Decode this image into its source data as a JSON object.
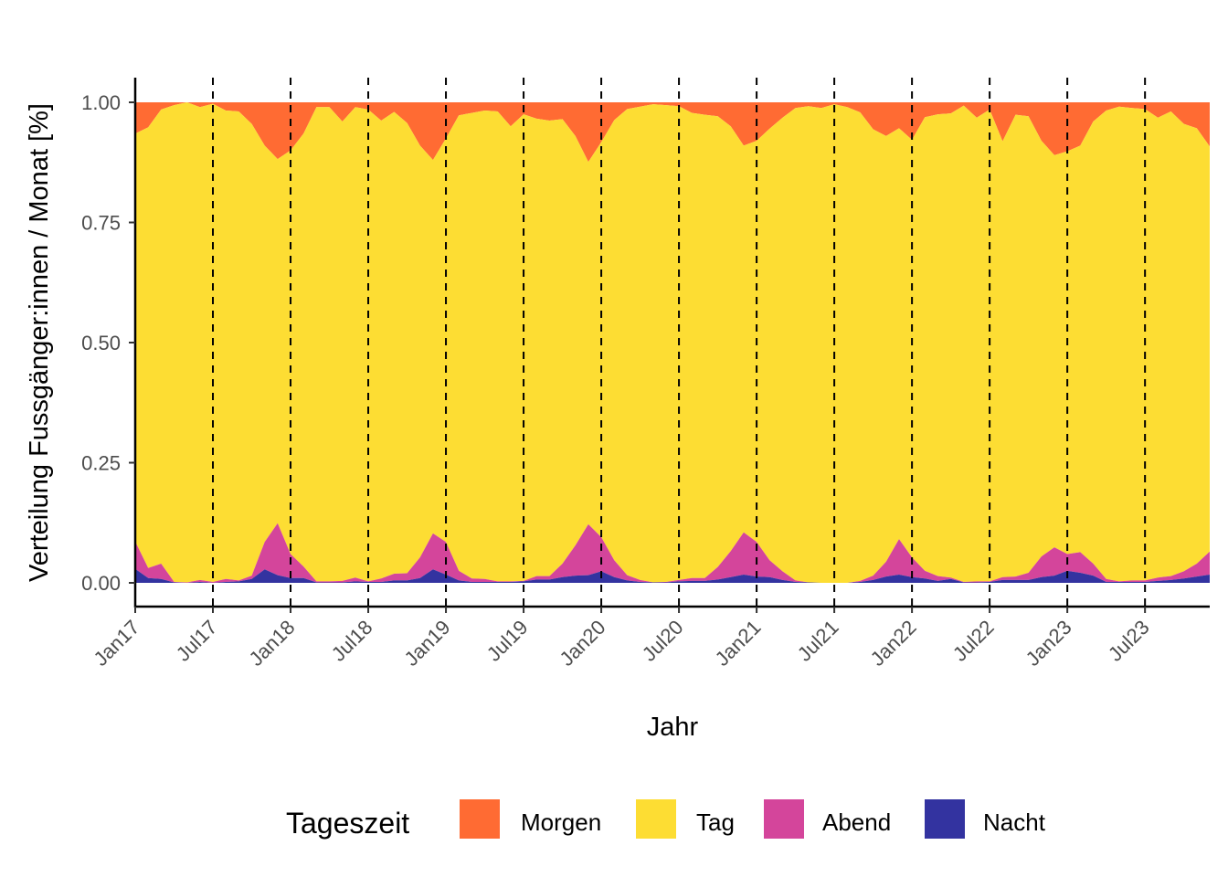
{
  "chart_data": {
    "type": "area",
    "stacked": true,
    "normalized": true,
    "title": "",
    "xlabel": "Jahr",
    "ylabel": "Verteilung Fussgänger:innen / Monat [%]",
    "ylim": [
      0,
      1
    ],
    "yticks": [
      "0.00",
      "0.25",
      "0.50",
      "0.75",
      "1.00"
    ],
    "ytick_values": [
      0,
      0.25,
      0.5,
      0.75,
      1.0
    ],
    "xticks": [
      "Jan17",
      "Jul17",
      "Jan18",
      "Jul18",
      "Jan19",
      "Jul19",
      "Jan20",
      "Jul20",
      "Jan21",
      "Jul21",
      "Jan22",
      "Jul22",
      "Jan23",
      "Jul23"
    ],
    "xtick_month_index": [
      0,
      6,
      12,
      18,
      24,
      30,
      36,
      42,
      48,
      54,
      60,
      66,
      72,
      78
    ],
    "x_start": "2017-01",
    "x_end": "2023-12",
    "n_months": 84,
    "vertical_dashed_lines_at_ticks": true,
    "grid": false,
    "legend": {
      "title": "Tageszeit",
      "position": "bottom",
      "entries": [
        "Morgen",
        "Tag",
        "Abend",
        "Nacht"
      ]
    },
    "colors": {
      "Morgen": "#FF6B33",
      "Tag": "#FDDD33",
      "Abend": "#D4459B",
      "Nacht": "#3333A0"
    },
    "stack_order_bottom_to_top": [
      "Nacht",
      "Abend",
      "Tag",
      "Morgen"
    ],
    "cumulative_top_of_tag": [
      0.935,
      0.948,
      0.985,
      0.994,
      1.0,
      0.99,
      0.997,
      0.983,
      0.981,
      0.955,
      0.91,
      0.882,
      0.9,
      0.935,
      0.99,
      0.99,
      0.96,
      0.99,
      0.985,
      0.962,
      0.98,
      0.957,
      0.91,
      0.88,
      0.925,
      0.973,
      0.978,
      0.983,
      0.981,
      0.95,
      0.975,
      0.966,
      0.962,
      0.965,
      0.93,
      0.876,
      0.917,
      0.963,
      0.986,
      0.991,
      0.996,
      0.994,
      0.992,
      0.978,
      0.974,
      0.971,
      0.95,
      0.91,
      0.92,
      0.945,
      0.968,
      0.988,
      0.992,
      0.988,
      0.996,
      0.99,
      0.979,
      0.944,
      0.93,
      0.946,
      0.922,
      0.969,
      0.975,
      0.977,
      0.993,
      0.968,
      0.985,
      0.919,
      0.974,
      0.971,
      0.92,
      0.89,
      0.898,
      0.91,
      0.96,
      0.983,
      0.991,
      0.988,
      0.986,
      0.968,
      0.981,
      0.955,
      0.946,
      0.908
    ],
    "cumulative_top_of_abend": [
      0.086,
      0.031,
      0.04,
      0.002,
      0.001,
      0.006,
      0.002,
      0.008,
      0.005,
      0.015,
      0.085,
      0.124,
      0.06,
      0.034,
      0.003,
      0.003,
      0.004,
      0.011,
      0.003,
      0.009,
      0.019,
      0.02,
      0.053,
      0.103,
      0.085,
      0.025,
      0.009,
      0.008,
      0.003,
      0.003,
      0.004,
      0.014,
      0.014,
      0.04,
      0.078,
      0.122,
      0.095,
      0.047,
      0.016,
      0.006,
      0.001,
      0.002,
      0.006,
      0.01,
      0.01,
      0.033,
      0.066,
      0.105,
      0.085,
      0.047,
      0.024,
      0.005,
      0.001,
      0.0,
      0.0,
      0.0,
      0.004,
      0.015,
      0.044,
      0.091,
      0.053,
      0.025,
      0.014,
      0.011,
      0.002,
      0.003,
      0.003,
      0.012,
      0.013,
      0.021,
      0.055,
      0.074,
      0.06,
      0.064,
      0.04,
      0.008,
      0.003,
      0.005,
      0.005,
      0.011,
      0.014,
      0.024,
      0.04,
      0.065
    ],
    "cumulative_top_of_nacht": [
      0.029,
      0.01,
      0.008,
      0.001,
      0.0,
      0.002,
      0.0,
      0.002,
      0.003,
      0.008,
      0.028,
      0.016,
      0.01,
      0.01,
      0.001,
      0.001,
      0.001,
      0.003,
      0.002,
      0.002,
      0.005,
      0.005,
      0.01,
      0.028,
      0.017,
      0.005,
      0.002,
      0.002,
      0.002,
      0.002,
      0.003,
      0.007,
      0.007,
      0.012,
      0.015,
      0.016,
      0.024,
      0.012,
      0.005,
      0.002,
      0.001,
      0.001,
      0.003,
      0.004,
      0.004,
      0.007,
      0.012,
      0.017,
      0.013,
      0.012,
      0.006,
      0.002,
      0.001,
      0.0,
      0.0,
      0.0,
      0.002,
      0.006,
      0.013,
      0.017,
      0.012,
      0.009,
      0.004,
      0.008,
      0.001,
      0.001,
      0.002,
      0.006,
      0.006,
      0.006,
      0.012,
      0.015,
      0.025,
      0.021,
      0.015,
      0.002,
      0.002,
      0.002,
      0.002,
      0.004,
      0.006,
      0.009,
      0.013,
      0.017
    ]
  }
}
